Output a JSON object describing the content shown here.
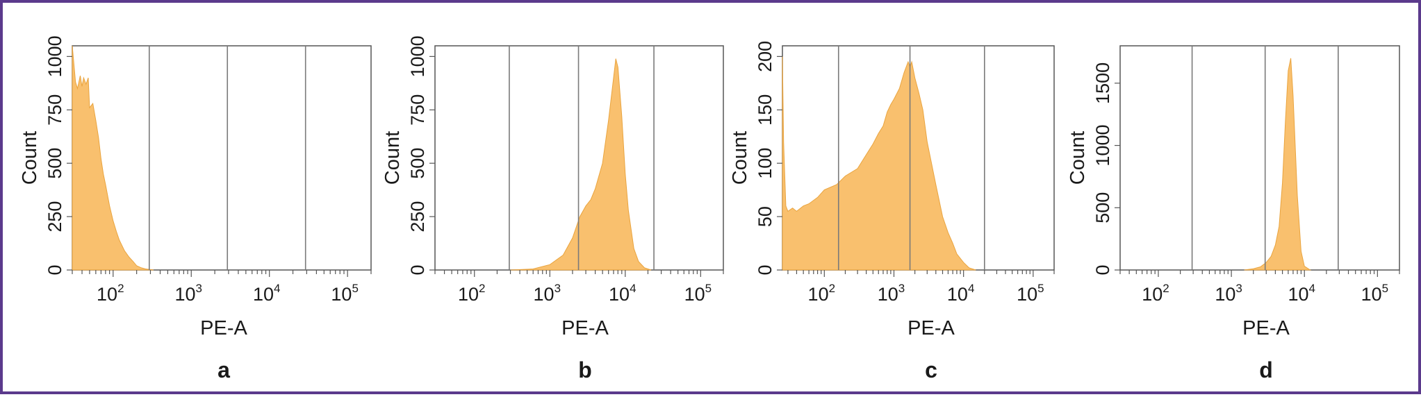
{
  "colors": {
    "border": "#5b3a8c",
    "fill": "#f9c06e",
    "edge": "#e9a43f",
    "gate": "#7a7a7a",
    "axis": "#555555"
  },
  "chart_data": [
    {
      "type": "area",
      "panel_label": "a",
      "xlabel": "PE-A",
      "ylabel": "Count",
      "x_scale": "log",
      "xlim": [
        30,
        200000
      ],
      "ylim": [
        0,
        1050
      ],
      "x_ticks": [
        100,
        1000,
        10000,
        100000
      ],
      "x_tick_labels": [
        {
          "base": "10",
          "exp": "2"
        },
        {
          "base": "10",
          "exp": "3"
        },
        {
          "base": "10",
          "exp": "4"
        },
        {
          "base": "10",
          "exp": "5"
        }
      ],
      "y_ticks": [
        0,
        250,
        500,
        750,
        1000
      ],
      "gates": [
        290,
        2900,
        29000
      ],
      "series": [
        {
          "x": [
            30,
            33,
            35,
            38,
            40,
            42,
            45,
            48,
            50,
            55,
            60,
            65,
            70,
            75,
            80,
            90,
            100,
            110,
            120,
            140,
            160,
            180,
            200,
            230,
            260,
            300,
            330
          ],
          "y": [
            1050,
            880,
            850,
            910,
            860,
            900,
            870,
            900,
            760,
            780,
            700,
            620,
            520,
            450,
            400,
            300,
            230,
            180,
            140,
            90,
            60,
            40,
            20,
            10,
            5,
            2,
            0
          ]
        }
      ]
    },
    {
      "type": "area",
      "panel_label": "b",
      "xlabel": "PE-A",
      "ylabel": "Count",
      "x_scale": "log",
      "xlim": [
        30,
        200000
      ],
      "ylim": [
        0,
        1050
      ],
      "x_ticks": [
        100,
        1000,
        10000,
        100000
      ],
      "x_tick_labels": [
        {
          "base": "10",
          "exp": "2"
        },
        {
          "base": "10",
          "exp": "3"
        },
        {
          "base": "10",
          "exp": "4"
        },
        {
          "base": "10",
          "exp": "5"
        }
      ],
      "y_ticks": [
        0,
        250,
        500,
        750,
        1000
      ],
      "gates": [
        290,
        2400,
        24000
      ],
      "series": [
        {
          "x": [
            300,
            600,
            1000,
            1500,
            2000,
            2500,
            3000,
            3500,
            4000,
            5000,
            6000,
            7000,
            7500,
            8000,
            9000,
            10000,
            11000,
            13000,
            15000,
            18000,
            22000
          ],
          "y": [
            0,
            5,
            25,
            70,
            150,
            250,
            300,
            330,
            380,
            500,
            700,
            900,
            990,
            950,
            720,
            450,
            280,
            100,
            40,
            10,
            0
          ]
        }
      ]
    },
    {
      "type": "area",
      "panel_label": "c",
      "xlabel": "PE-A",
      "ylabel": "Count",
      "x_scale": "log",
      "xlim": [
        25,
        200000
      ],
      "ylim": [
        0,
        210
      ],
      "x_ticks": [
        100,
        1000,
        10000,
        100000
      ],
      "x_tick_labels": [
        {
          "base": "10",
          "exp": "2"
        },
        {
          "base": "10",
          "exp": "3"
        },
        {
          "base": "10",
          "exp": "4"
        },
        {
          "base": "10",
          "exp": "5"
        }
      ],
      "y_ticks": [
        0,
        50,
        100,
        150,
        200
      ],
      "gates": [
        160,
        1700,
        20000
      ],
      "series": [
        {
          "x": [
            25,
            26,
            28,
            30,
            35,
            40,
            50,
            60,
            80,
            100,
            150,
            200,
            300,
            400,
            500,
            600,
            700,
            800,
            900,
            1000,
            1200,
            1400,
            1600,
            1700,
            1800,
            2000,
            2300,
            2600,
            3000,
            4000,
            5000,
            6000,
            7000,
            8000,
            10000,
            12000,
            15000
          ],
          "y": [
            200,
            120,
            60,
            55,
            58,
            55,
            60,
            62,
            68,
            75,
            80,
            88,
            95,
            108,
            118,
            128,
            135,
            148,
            155,
            160,
            170,
            185,
            195,
            190,
            195,
            180,
            165,
            150,
            120,
            80,
            50,
            35,
            25,
            15,
            7,
            2,
            0
          ]
        }
      ]
    },
    {
      "type": "area",
      "panel_label": "d",
      "xlabel": "PE-A",
      "ylabel": "Count",
      "x_scale": "log",
      "xlim": [
        30,
        200000
      ],
      "ylim": [
        0,
        1800
      ],
      "x_ticks": [
        100,
        1000,
        10000,
        100000
      ],
      "x_tick_labels": [
        {
          "base": "10",
          "exp": "2"
        },
        {
          "base": "10",
          "exp": "3"
        },
        {
          "base": "10",
          "exp": "4"
        },
        {
          "base": "10",
          "exp": "5"
        }
      ],
      "y_ticks": [
        0,
        500,
        1000,
        1500
      ],
      "gates": [
        290,
        2900,
        29000
      ],
      "series": [
        {
          "x": [
            1500,
            2000,
            2500,
            3000,
            3500,
            4000,
            4500,
            5000,
            5500,
            6000,
            6500,
            7000,
            8000,
            9000,
            10000,
            12000
          ],
          "y": [
            0,
            10,
            25,
            60,
            110,
            200,
            350,
            700,
            1200,
            1600,
            1700,
            1400,
            600,
            150,
            30,
            0
          ]
        }
      ]
    }
  ]
}
